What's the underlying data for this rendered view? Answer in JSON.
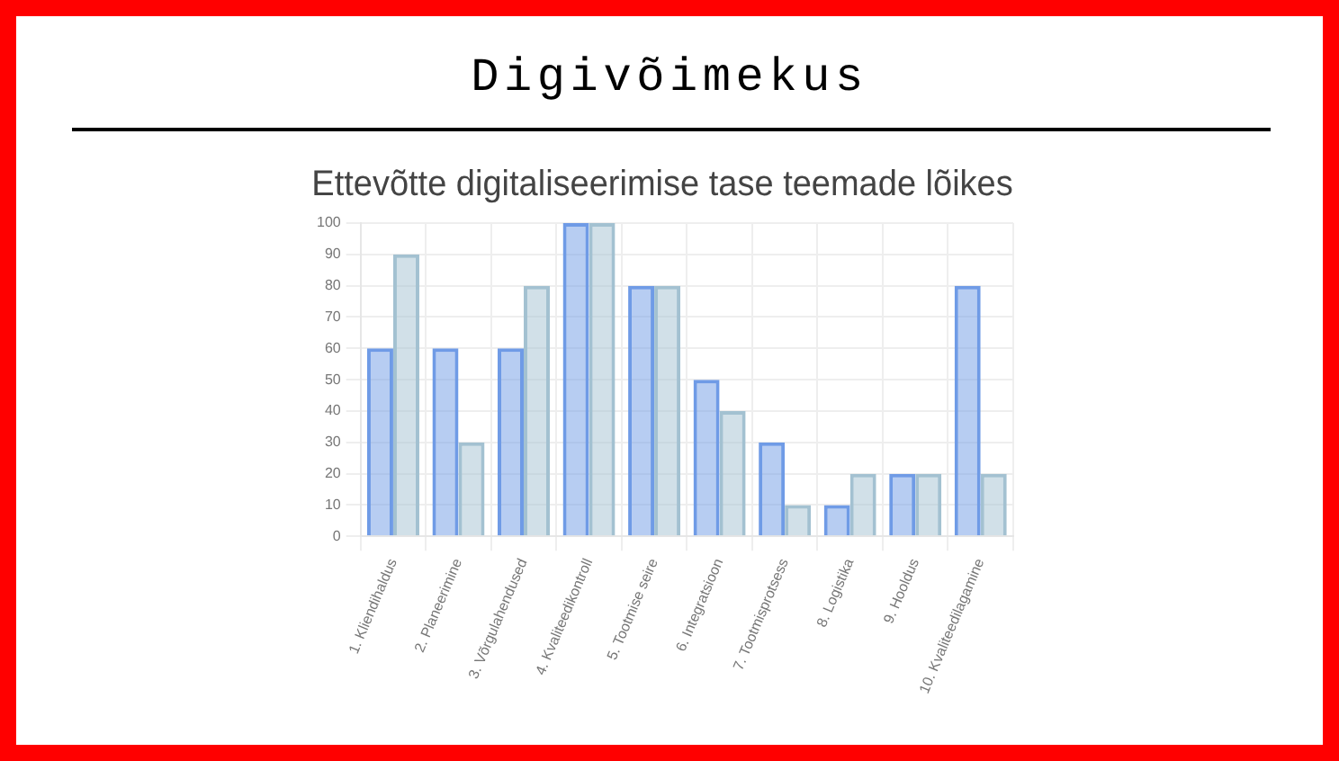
{
  "chart_data": {
    "type": "bar",
    "title": "Digivõimekus",
    "subtitle": "Ettevõtte digitaliseerimise tase teemade lõikes",
    "categories": [
      "1. Kliendihaldus",
      "2. Planeerimine",
      "3. Võrgulahendused",
      "4. Kvaliteedikontroll",
      "5. Tootmise seire",
      "6. Integratsioon",
      "7. Tootmisprotsess",
      "8. Logistika",
      "9. Hooldus",
      "10. Kvaliteedilagamine"
    ],
    "series": [
      {
        "color": "#6f9be6",
        "values": [
          60,
          60,
          60,
          100,
          80,
          50,
          30,
          10,
          20,
          80
        ]
      },
      {
        "color": "#a3c1d1",
        "values": [
          90,
          30,
          80,
          100,
          80,
          40,
          10,
          20,
          20,
          20
        ]
      }
    ],
    "ylim": [
      0,
      100
    ],
    "yticks": [
      0,
      10,
      20,
      30,
      40,
      50,
      60,
      70,
      80,
      90,
      100
    ],
    "grid": true,
    "legend": false
  }
}
